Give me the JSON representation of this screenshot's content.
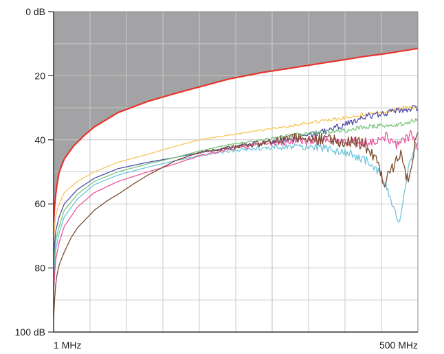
{
  "chart_data": {
    "type": "line",
    "title": "",
    "xlabel": "",
    "ylabel": "",
    "x_scale": "log",
    "xlim": [
      1,
      500
    ],
    "ylim": [
      0,
      100
    ],
    "y_inverted": true,
    "grid": true,
    "legend": "none",
    "y_ticks": [
      {
        "value": 0,
        "label": "0 dB"
      },
      {
        "value": 20,
        "label": "20"
      },
      {
        "value": 40,
        "label": "40"
      },
      {
        "value": 60,
        "label": "60"
      },
      {
        "value": 80,
        "label": "80"
      },
      {
        "value": 100,
        "label": "100 dB"
      }
    ],
    "x_ticks": [
      {
        "value": 1,
        "label": "1 MHz"
      },
      {
        "value": 500,
        "label": "500 MHz"
      }
    ],
    "colors": {
      "background": "#ffffff",
      "shaded_region": "#a3a3a5",
      "grid": "#c8c8c8",
      "axis": "#333333"
    },
    "series": [
      {
        "color": "#e8322b",
        "noise": 0,
        "x": [
          1,
          1.02,
          1.05,
          1.1,
          1.2,
          1.4,
          1.7,
          2,
          3,
          5,
          8,
          12,
          20,
          35,
          60,
          100,
          200,
          300,
          500
        ],
        "y": [
          66,
          60,
          55,
          50,
          46,
          42,
          38.5,
          36,
          31.5,
          28,
          25.5,
          23.5,
          21,
          19,
          17.5,
          16,
          14,
          13,
          11.5
        ]
      },
      {
        "color": "#f8c65c",
        "noise": 0.6,
        "x": [
          1,
          1.03,
          1.1,
          1.2,
          1.5,
          2,
          3,
          5,
          8,
          12,
          20,
          35,
          60,
          100,
          150,
          200,
          300,
          400,
          500
        ],
        "y": [
          72,
          64,
          60,
          56.5,
          53,
          50,
          47,
          44.5,
          42,
          40,
          38.5,
          37,
          35.5,
          34,
          33,
          32,
          31,
          30,
          30
        ]
      },
      {
        "color": "#4f4ca6",
        "noise": 1.0,
        "x": [
          1,
          1.03,
          1.1,
          1.2,
          1.5,
          2,
          3,
          5,
          8,
          12,
          20,
          35,
          60,
          100,
          150,
          200,
          300,
          400,
          500
        ],
        "y": [
          78,
          69,
          64,
          60,
          55.5,
          52,
          49,
          47,
          45.5,
          44,
          42.5,
          41,
          39.5,
          37.5,
          35,
          33,
          31.5,
          30.5,
          30
        ]
      },
      {
        "color": "#78c67c",
        "noise": 0.7,
        "x": [
          1,
          1.03,
          1.1,
          1.2,
          1.5,
          2,
          3,
          5,
          8,
          12,
          20,
          35,
          60,
          100,
          150,
          200,
          300,
          400,
          500
        ],
        "y": [
          82,
          72,
          67,
          62,
          57,
          53,
          50,
          47.5,
          45.5,
          43.5,
          41.5,
          40,
          38.5,
          37.5,
          37,
          36,
          35.5,
          35,
          33.5
        ]
      },
      {
        "color": "#6fc4dc",
        "noise": 1.4,
        "x": [
          1,
          1.03,
          1.1,
          1.2,
          1.5,
          2,
          3,
          5,
          8,
          12,
          20,
          35,
          60,
          100,
          130,
          170,
          220,
          270,
          300,
          330,
          360,
          400,
          430,
          460,
          500
        ],
        "y": [
          86,
          75,
          69,
          64,
          58.5,
          54,
          51,
          48.5,
          46.5,
          45,
          43.5,
          42.5,
          42,
          42.5,
          43.5,
          45,
          47,
          51,
          56,
          62,
          66,
          57,
          48,
          44,
          41
        ]
      },
      {
        "color": "#e8549b",
        "noise": 1.6,
        "x": [
          1,
          1.03,
          1.1,
          1.2,
          1.5,
          2,
          3,
          5,
          8,
          12,
          20,
          35,
          60,
          100,
          150,
          200,
          250,
          300,
          350,
          400,
          450,
          500
        ],
        "y": [
          88,
          78,
          72,
          67,
          61,
          56.5,
          53,
          50,
          47.5,
          45,
          43,
          41.5,
          40.5,
          40,
          40.5,
          41,
          40,
          39,
          42,
          40,
          38,
          44
        ]
      },
      {
        "color": "#7b4a2e",
        "noise": 2.0,
        "x": [
          1,
          1.01,
          1.03,
          1.06,
          1.1,
          1.2,
          1.35,
          1.5,
          1.8,
          2,
          2.5,
          3,
          4,
          5,
          8,
          12,
          20,
          35,
          60,
          100,
          150,
          200,
          250,
          280,
          320,
          380,
          420,
          470,
          500
        ],
        "y": [
          96,
          92,
          86,
          82,
          79,
          75,
          70.5,
          67.5,
          64,
          62,
          59,
          57,
          53.5,
          51,
          46.5,
          44,
          42.5,
          41,
          39.5,
          40,
          40.5,
          41.5,
          46,
          54,
          49,
          44,
          53,
          42,
          39
        ]
      }
    ]
  }
}
